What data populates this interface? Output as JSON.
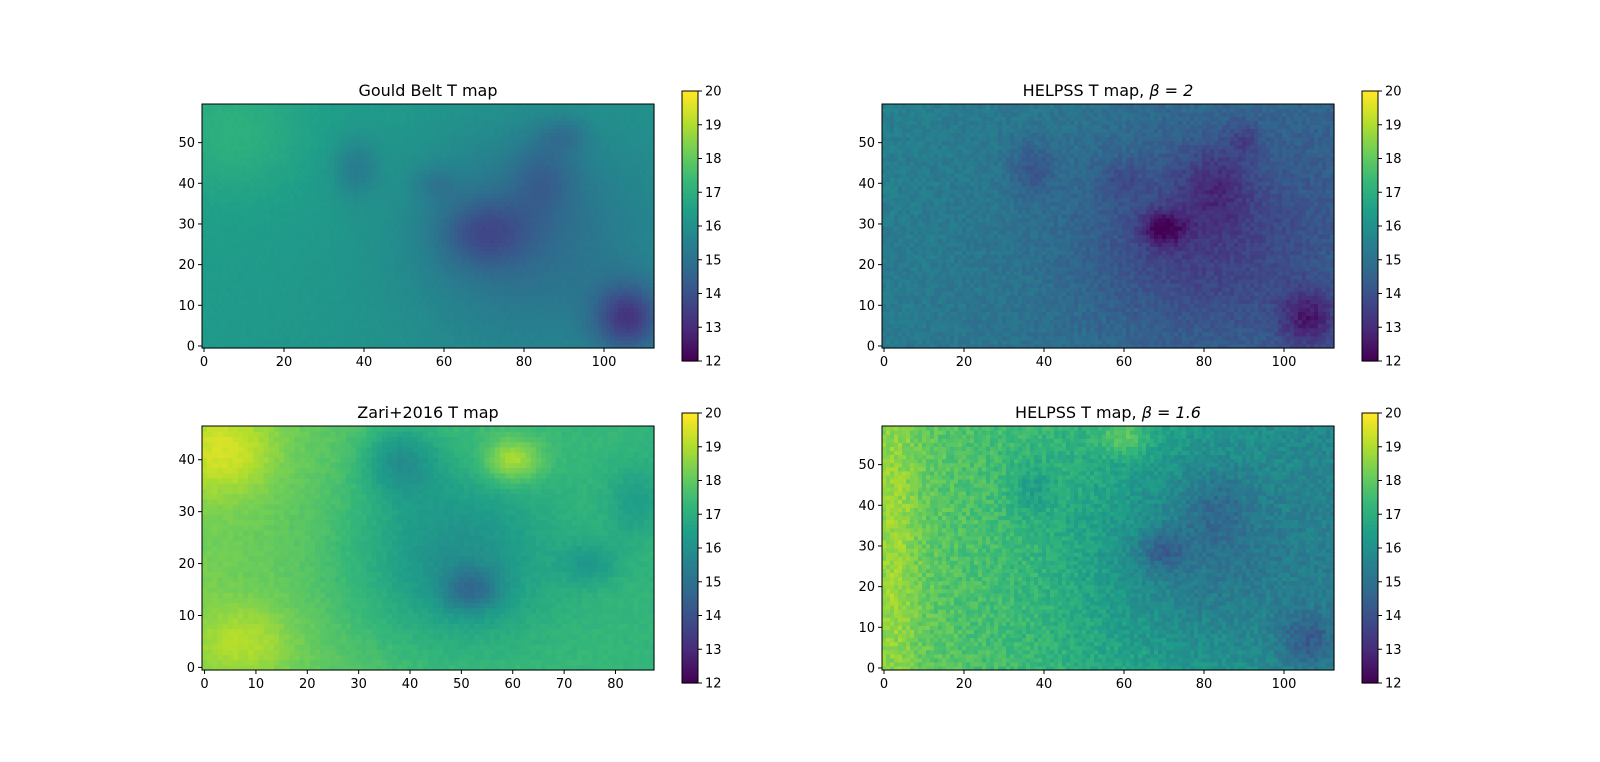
{
  "chart_data": [
    {
      "type": "heatmap",
      "title": "Gould Belt T map",
      "title_parts": {
        "text": "Gould Belt T map",
        "math": ""
      },
      "xlim": [
        -0.5,
        112.5
      ],
      "ylim": [
        -0.5,
        59.5
      ],
      "xticks": [
        0,
        20,
        40,
        60,
        80,
        100
      ],
      "yticks": [
        0,
        10,
        20,
        30,
        40,
        50
      ],
      "colorbar": {
        "min": 12,
        "max": 20,
        "ticks": [
          12,
          13,
          14,
          15,
          16,
          17,
          18,
          19,
          20
        ]
      },
      "colormap": "viridis",
      "field": {
        "base": 16.3,
        "gradient_x": -0.004,
        "gradient_y": 0.004,
        "noise": 0.05,
        "features": [
          {
            "x": 70,
            "y": 28,
            "sx": 8,
            "sy": 6,
            "amp": -1.4
          },
          {
            "x": 106,
            "y": 7,
            "sx": 6,
            "sy": 6,
            "amp": -2.4
          },
          {
            "x": 80,
            "y": 27,
            "sx": 20,
            "sy": 18,
            "amp": -1.2
          },
          {
            "x": 38,
            "y": 44,
            "sx": 4,
            "sy": 5,
            "amp": -0.9
          },
          {
            "x": 85,
            "y": 42,
            "sx": 6,
            "sy": 7,
            "amp": -0.9
          },
          {
            "x": 58,
            "y": 40,
            "sx": 4,
            "sy": 3,
            "amp": -0.6
          },
          {
            "x": 90,
            "y": 52,
            "sx": 4,
            "sy": 3,
            "amp": -0.7
          },
          {
            "x": 8,
            "y": 52,
            "sx": 12,
            "sy": 10,
            "amp": 0.6
          }
        ]
      }
    },
    {
      "type": "heatmap",
      "title": "HELPSS T map, β = 2",
      "title_parts": {
        "text": "HELPSS T map, ",
        "math": "β = 2"
      },
      "xlim": [
        -0.5,
        112.5
      ],
      "ylim": [
        -0.5,
        59.5
      ],
      "xticks": [
        0,
        20,
        40,
        60,
        80,
        100
      ],
      "yticks": [
        0,
        10,
        20,
        30,
        40,
        50
      ],
      "colorbar": {
        "min": 12,
        "max": 20,
        "ticks": [
          12,
          13,
          14,
          15,
          16,
          17,
          18,
          19,
          20
        ]
      },
      "colormap": "viridis",
      "field": {
        "base": 15.3,
        "gradient_x": -0.008,
        "gradient_y": 0.003,
        "noise": 0.3,
        "features": [
          {
            "x": 70,
            "y": 29,
            "sx": 4,
            "sy": 3,
            "amp": -1.8
          },
          {
            "x": 106,
            "y": 7,
            "sx": 5,
            "sy": 5,
            "amp": -1.8
          },
          {
            "x": 78,
            "y": 27,
            "sx": 20,
            "sy": 16,
            "amp": -1.3
          },
          {
            "x": 37,
            "y": 44,
            "sx": 4,
            "sy": 5,
            "amp": -0.9
          },
          {
            "x": 83,
            "y": 40,
            "sx": 6,
            "sy": 7,
            "amp": -0.9
          },
          {
            "x": 59,
            "y": 41,
            "sx": 4,
            "sy": 3,
            "amp": -0.6
          },
          {
            "x": 90,
            "y": 51,
            "sx": 3,
            "sy": 3,
            "amp": -0.8
          }
        ]
      }
    },
    {
      "type": "heatmap",
      "title": "Zari+2016 T map",
      "title_parts": {
        "text": "Zari+2016 T map",
        "math": ""
      },
      "xlim": [
        -0.5,
        87.5
      ],
      "ylim": [
        -0.5,
        46.5
      ],
      "xticks": [
        0,
        10,
        20,
        30,
        40,
        50,
        60,
        70,
        80
      ],
      "yticks": [
        0,
        10,
        20,
        30,
        40
      ],
      "colorbar": {
        "min": 12,
        "max": 20,
        "ticks": [
          12,
          13,
          14,
          15,
          16,
          17,
          18,
          19,
          20
        ]
      },
      "colormap": "viridis",
      "field": {
        "base": 18.3,
        "gradient_x": -0.012,
        "gradient_y": 0.0,
        "noise": 0.12,
        "features": [
          {
            "x": 52,
            "y": 15,
            "sx": 4,
            "sy": 3,
            "amp": -1.6
          },
          {
            "x": 48,
            "y": 22,
            "sx": 14,
            "sy": 13,
            "amp": -1.7
          },
          {
            "x": 38,
            "y": 40,
            "sx": 5,
            "sy": 5,
            "amp": -1.4
          },
          {
            "x": 75,
            "y": 20,
            "sx": 4,
            "sy": 3,
            "amp": -0.9
          },
          {
            "x": 84,
            "y": 32,
            "sx": 4,
            "sy": 5,
            "amp": -0.8
          },
          {
            "x": 60,
            "y": 40,
            "sx": 4,
            "sy": 3,
            "amp": 1.8
          },
          {
            "x": 4,
            "y": 42,
            "sx": 7,
            "sy": 6,
            "amp": 1.3
          },
          {
            "x": 8,
            "y": 5,
            "sx": 7,
            "sy": 5,
            "amp": 0.9
          }
        ]
      }
    },
    {
      "type": "heatmap",
      "title": "HELPSS T map, β = 1.6",
      "title_parts": {
        "text": "HELPSS T map, ",
        "math": "β = 1.6"
      },
      "xlim": [
        -0.5,
        112.5
      ],
      "ylim": [
        -0.5,
        59.5
      ],
      "xticks": [
        0,
        20,
        40,
        60,
        80,
        100
      ],
      "yticks": [
        0,
        10,
        20,
        30,
        40,
        50
      ],
      "colorbar": {
        "min": 12,
        "max": 20,
        "ticks": [
          12,
          13,
          14,
          15,
          16,
          17,
          18,
          19,
          20
        ]
      },
      "colormap": "viridis",
      "field": {
        "base": 18.2,
        "gradient_x": -0.022,
        "gradient_y": 0.0,
        "noise": 0.4,
        "features": [
          {
            "x": 70,
            "y": 29,
            "sx": 4,
            "sy": 3,
            "amp": -1.4
          },
          {
            "x": 106,
            "y": 7,
            "sx": 5,
            "sy": 5,
            "amp": -1.4
          },
          {
            "x": 78,
            "y": 27,
            "sx": 20,
            "sy": 16,
            "amp": -1.2
          },
          {
            "x": 37,
            "y": 44,
            "sx": 4,
            "sy": 5,
            "amp": -0.8
          },
          {
            "x": 83,
            "y": 40,
            "sx": 6,
            "sy": 7,
            "amp": -0.8
          },
          {
            "x": 60,
            "y": 57,
            "sx": 5,
            "sy": 3,
            "amp": 1.2
          },
          {
            "x": 3,
            "y": 30,
            "sx": 4,
            "sy": 30,
            "amp": 0.7
          }
        ]
      }
    }
  ]
}
